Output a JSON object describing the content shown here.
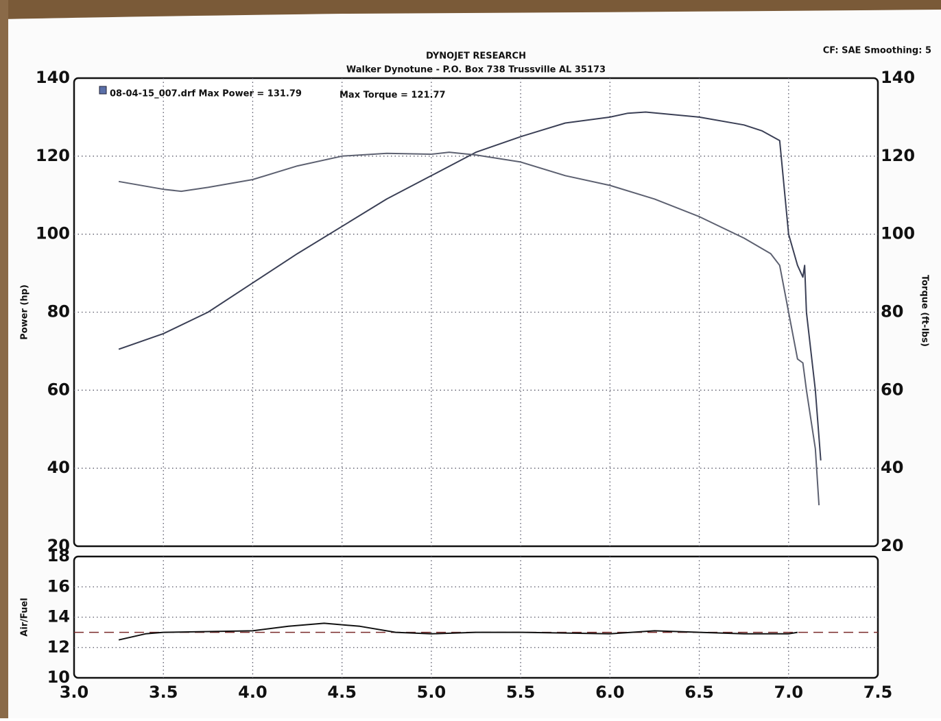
{
  "header": {
    "title": "DYNOJET RESEARCH",
    "subtitle": "Walker Dynotune - P.O. Box 738 Trussville AL 35173",
    "settings": "CF: SAE  Smoothing: 5"
  },
  "chart_data": [
    {
      "type": "line",
      "y_label": "Power (hp)",
      "y2_label": "Torque (ft-lbs)",
      "annotations": [
        "08-04-15_007.drf Max Power = 131.79",
        "Max Torque = 121.77"
      ],
      "legend_color": "#5a6fa8",
      "xlim": [
        3.0,
        7.5
      ],
      "ylim": [
        20,
        140
      ],
      "yticks": [
        20,
        40,
        60,
        80,
        100,
        120,
        140
      ],
      "y2lim": [
        20,
        140
      ],
      "y2ticks": [
        20,
        40,
        60,
        80,
        100,
        120,
        140
      ],
      "grid": true,
      "series": [
        {
          "color": "#3a3f55",
          "x": [
            3.25,
            3.5,
            3.75,
            4.0,
            4.25,
            4.5,
            4.75,
            5.0,
            5.25,
            5.5,
            5.75,
            6.0,
            6.1,
            6.2,
            6.5,
            6.75,
            6.85,
            6.95,
            7.0,
            7.05,
            7.08,
            7.09,
            7.1,
            7.15,
            7.18
          ],
          "values": [
            70.5,
            74.5,
            80,
            87.5,
            95,
            102,
            109,
            115,
            121,
            125,
            128.5,
            130,
            131,
            131.3,
            130,
            128,
            126.5,
            124,
            100,
            92,
            89,
            92,
            80,
            60,
            42
          ]
        },
        {
          "color": "#5c6070",
          "axis": "y2",
          "x": [
            3.25,
            3.5,
            3.6,
            3.75,
            4.0,
            4.25,
            4.5,
            4.75,
            5.0,
            5.1,
            5.25,
            5.5,
            5.75,
            6.0,
            6.25,
            6.5,
            6.75,
            6.9,
            6.95,
            7.0,
            7.05,
            7.08,
            7.1,
            7.15,
            7.17
          ],
          "values": [
            113.5,
            111.5,
            111,
            112,
            114,
            117.5,
            120,
            120.7,
            120.5,
            121,
            120.3,
            118.5,
            115,
            112.5,
            109,
            104.5,
            99,
            95,
            92,
            80,
            68,
            67,
            60,
            45,
            30.5
          ]
        }
      ]
    },
    {
      "type": "line",
      "y_label": "Air/Fuel",
      "xlim": [
        3.0,
        7.5
      ],
      "xticks": [
        {
          "value": 3.0,
          "label": "3.0"
        },
        3.5,
        {
          "value": 4.0,
          "label": "4.0"
        },
        4.5,
        {
          "value": 5.0,
          "label": "5.0"
        },
        5.5,
        {
          "value": 6.0,
          "label": "6.0"
        },
        6.5,
        {
          "value": 7.0,
          "label": "7.0"
        },
        7.5
      ],
      "ylim": [
        10,
        18
      ],
      "yticks": [
        10,
        12,
        14,
        16,
        18
      ],
      "grid": true,
      "reference": 13.0,
      "reference_color": "#7a2a2a",
      "series": [
        {
          "color": "#111111",
          "x": [
            3.25,
            3.4,
            3.5,
            4.0,
            4.2,
            4.4,
            4.6,
            4.8,
            5.0,
            5.25,
            5.5,
            6.0,
            6.25,
            6.5,
            6.75,
            7.0,
            7.05
          ],
          "values": [
            12.5,
            12.9,
            13.0,
            13.1,
            13.4,
            13.6,
            13.4,
            13.0,
            12.9,
            13.0,
            13.0,
            12.9,
            13.1,
            13.0,
            12.9,
            12.9,
            13.0
          ]
        }
      ]
    }
  ]
}
